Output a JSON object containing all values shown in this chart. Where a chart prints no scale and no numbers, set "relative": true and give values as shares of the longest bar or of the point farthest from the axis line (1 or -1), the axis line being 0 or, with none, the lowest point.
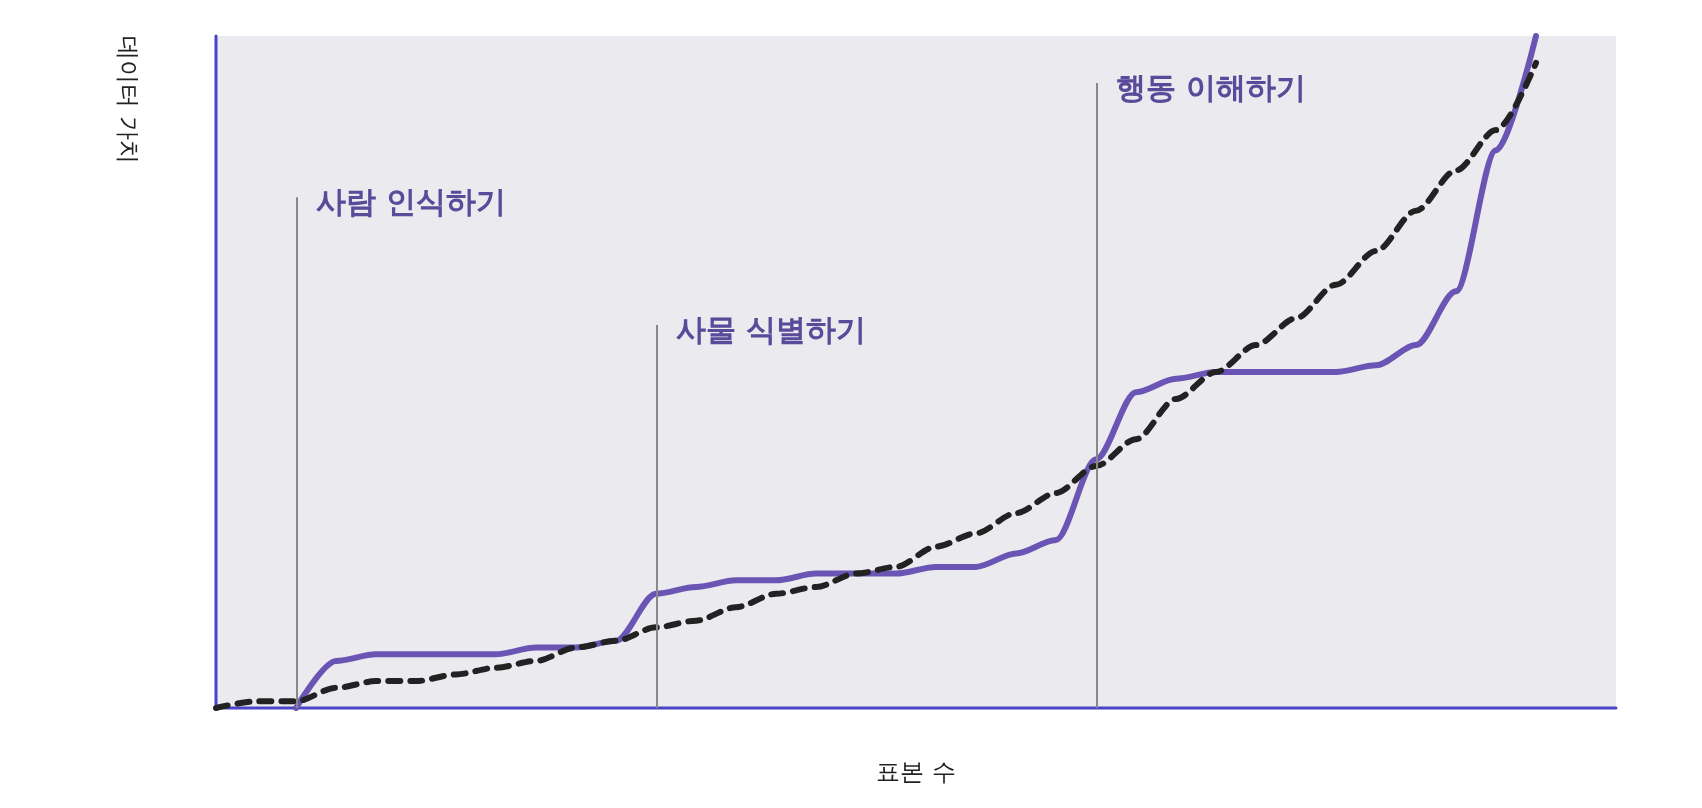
{
  "chart_data": {
    "type": "line",
    "relative": true,
    "xlabel": "표본 수",
    "ylabel": "데이터 가치",
    "categories": [
      null,
      null,
      null,
      null,
      null,
      null,
      null,
      null,
      null,
      null,
      null,
      null,
      null,
      null,
      null,
      null,
      null,
      null,
      null,
      null,
      null,
      null,
      null,
      null,
      null,
      null,
      null,
      null,
      null,
      null,
      null,
      null,
      null,
      null,
      null,
      null
    ],
    "series": [
      {
        "color": "#6a55b4",
        "line_style": "solid",
        "values": [
          null,
          null,
          0,
          0.07,
          0.08,
          0.08,
          0.08,
          0.08,
          0.09,
          0.09,
          0.1,
          0.17,
          0.18,
          0.19,
          0.19,
          0.2,
          0.2,
          0.2,
          0.21,
          0.21,
          0.23,
          0.25,
          0.37,
          0.47,
          0.49,
          0.5,
          0.5,
          0.5,
          0.5,
          0.51,
          0.54,
          0.62,
          0.83,
          1,
          null,
          null
        ]
      },
      {
        "color": "#222222",
        "line_style": "dashed",
        "values": [
          0,
          0.01,
          0.01,
          0.03,
          0.04,
          0.04,
          0.05,
          0.06,
          0.07,
          0.09,
          0.1,
          0.12,
          0.13,
          0.15,
          0.17,
          0.18,
          0.2,
          0.21,
          0.24,
          0.26,
          0.29,
          0.32,
          0.36,
          0.4,
          0.46,
          0.5,
          0.54,
          0.58,
          0.63,
          0.68,
          0.74,
          0.8,
          0.86,
          0.96,
          null,
          null
        ]
      }
    ],
    "annotations": [
      "사람 인식하기",
      "사물 식별하기",
      "행동 이해하기"
    ],
    "marker": "none"
  }
}
